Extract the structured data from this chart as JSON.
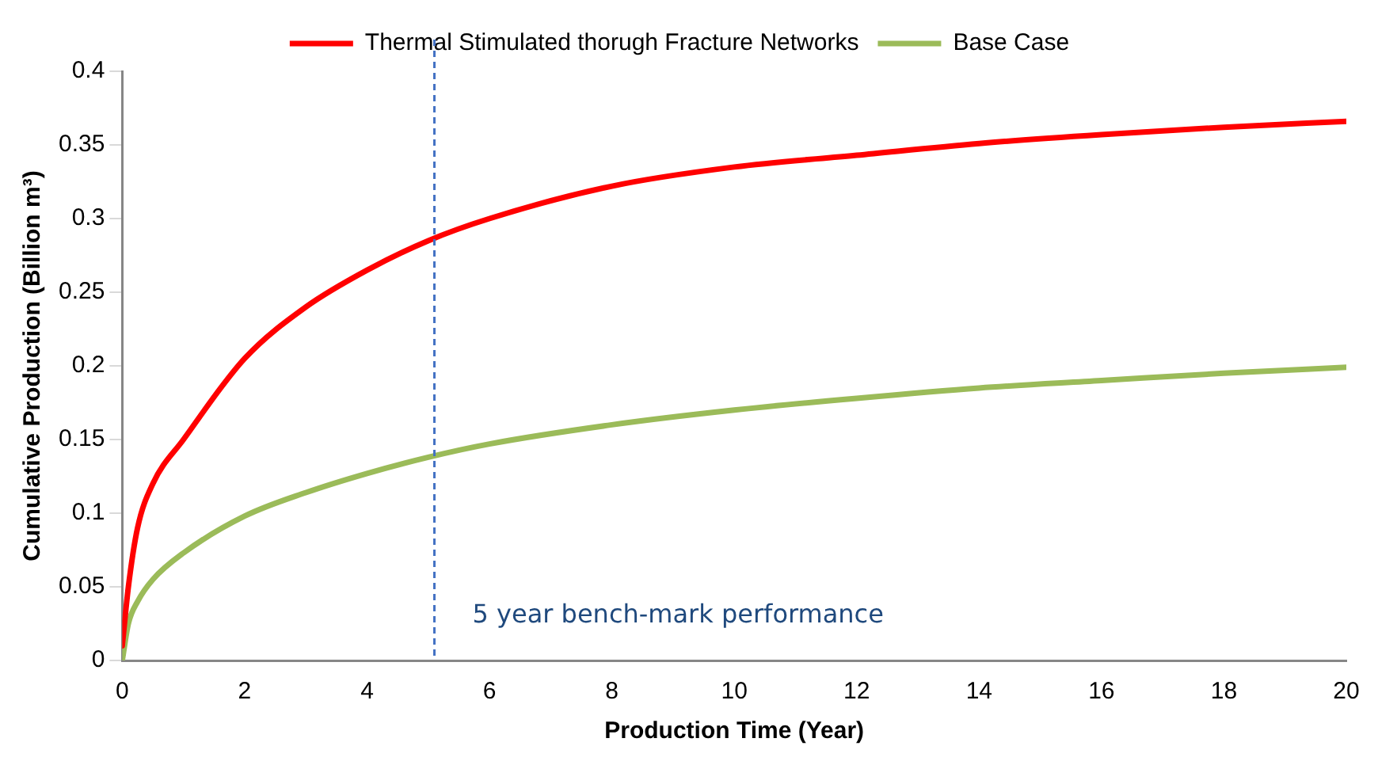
{
  "chart_data": {
    "type": "line",
    "xlabel": "Production Time (Year)",
    "ylabel": "Cumulative Production (Billion m³)",
    "xlim": [
      0,
      20
    ],
    "xticks": [
      0,
      2,
      4,
      6,
      8,
      10,
      12,
      14,
      16,
      18,
      20
    ],
    "ylim": [
      0,
      0.4
    ],
    "yticks": [
      0,
      0.05,
      0.1,
      0.15,
      0.2,
      0.25,
      0.3,
      0.35,
      0.4
    ],
    "grid": false,
    "legend": "top",
    "marker": "none",
    "line_style": "solid",
    "series": [
      {
        "name": "Thermal Stimulated thorugh Fracture Networks",
        "color": "#ff0000",
        "x": [
          0,
          0.1,
          0.25,
          0.5,
          1,
          2,
          3,
          4,
          5,
          6,
          8,
          10,
          12,
          14,
          16,
          18,
          20
        ],
        "values": [
          0.01,
          0.05,
          0.09,
          0.12,
          0.15,
          0.205,
          0.24,
          0.265,
          0.285,
          0.3,
          0.322,
          0.335,
          0.343,
          0.351,
          0.357,
          0.362,
          0.366
        ]
      },
      {
        "name": "Base Case",
        "color": "#9bbb59",
        "x": [
          0,
          0.1,
          0.25,
          0.5,
          1,
          2,
          3,
          4,
          5,
          6,
          8,
          10,
          12,
          14,
          16,
          18,
          20
        ],
        "values": [
          0,
          0.025,
          0.04,
          0.055,
          0.073,
          0.098,
          0.114,
          0.127,
          0.138,
          0.147,
          0.16,
          0.17,
          0.178,
          0.185,
          0.19,
          0.195,
          0.199
        ]
      }
    ],
    "ref_lines": [
      {
        "axis": "x",
        "value": 5.1,
        "label": "5 year bench-mark performance",
        "color": "#4472c4",
        "line_style": "dashed"
      }
    ]
  }
}
